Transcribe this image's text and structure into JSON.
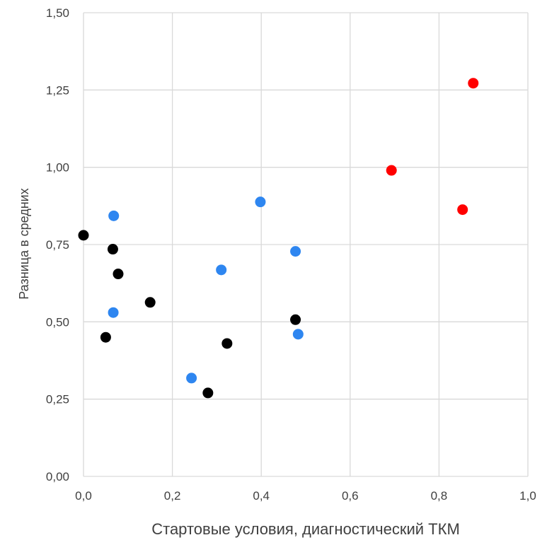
{
  "chart_data": {
    "type": "scatter",
    "title": "",
    "xlabel": "Стартовые условия, диагностический ТКМ",
    "ylabel": "Разница в средних",
    "xlim": [
      0,
      1
    ],
    "ylim": [
      0,
      1.5
    ],
    "x_ticks": [
      "0,0",
      "0,2",
      "0,4",
      "0,6",
      "0,8",
      "1,0"
    ],
    "y_ticks": [
      "0,00",
      "0,25",
      "0,50",
      "0,75",
      "1,00",
      "1,25",
      "1,50"
    ],
    "grid": true,
    "legend": "none",
    "series": [
      {
        "color": "#000000",
        "points": [
          {
            "x": 0.0,
            "y": 0.78
          },
          {
            "x": 0.066,
            "y": 0.735
          },
          {
            "x": 0.078,
            "y": 0.655
          },
          {
            "x": 0.05,
            "y": 0.45
          },
          {
            "x": 0.15,
            "y": 0.563
          },
          {
            "x": 0.28,
            "y": 0.27
          },
          {
            "x": 0.323,
            "y": 0.43
          },
          {
            "x": 0.477,
            "y": 0.507
          }
        ]
      },
      {
        "color": "#2E86F0",
        "points": [
          {
            "x": 0.068,
            "y": 0.843
          },
          {
            "x": 0.067,
            "y": 0.53
          },
          {
            "x": 0.243,
            "y": 0.318
          },
          {
            "x": 0.31,
            "y": 0.668
          },
          {
            "x": 0.398,
            "y": 0.888
          },
          {
            "x": 0.477,
            "y": 0.728
          },
          {
            "x": 0.483,
            "y": 0.46
          }
        ]
      },
      {
        "color": "#FF0000",
        "points": [
          {
            "x": 0.693,
            "y": 0.99
          },
          {
            "x": 0.877,
            "y": 1.272
          },
          {
            "x": 0.853,
            "y": 0.863
          }
        ]
      }
    ]
  }
}
